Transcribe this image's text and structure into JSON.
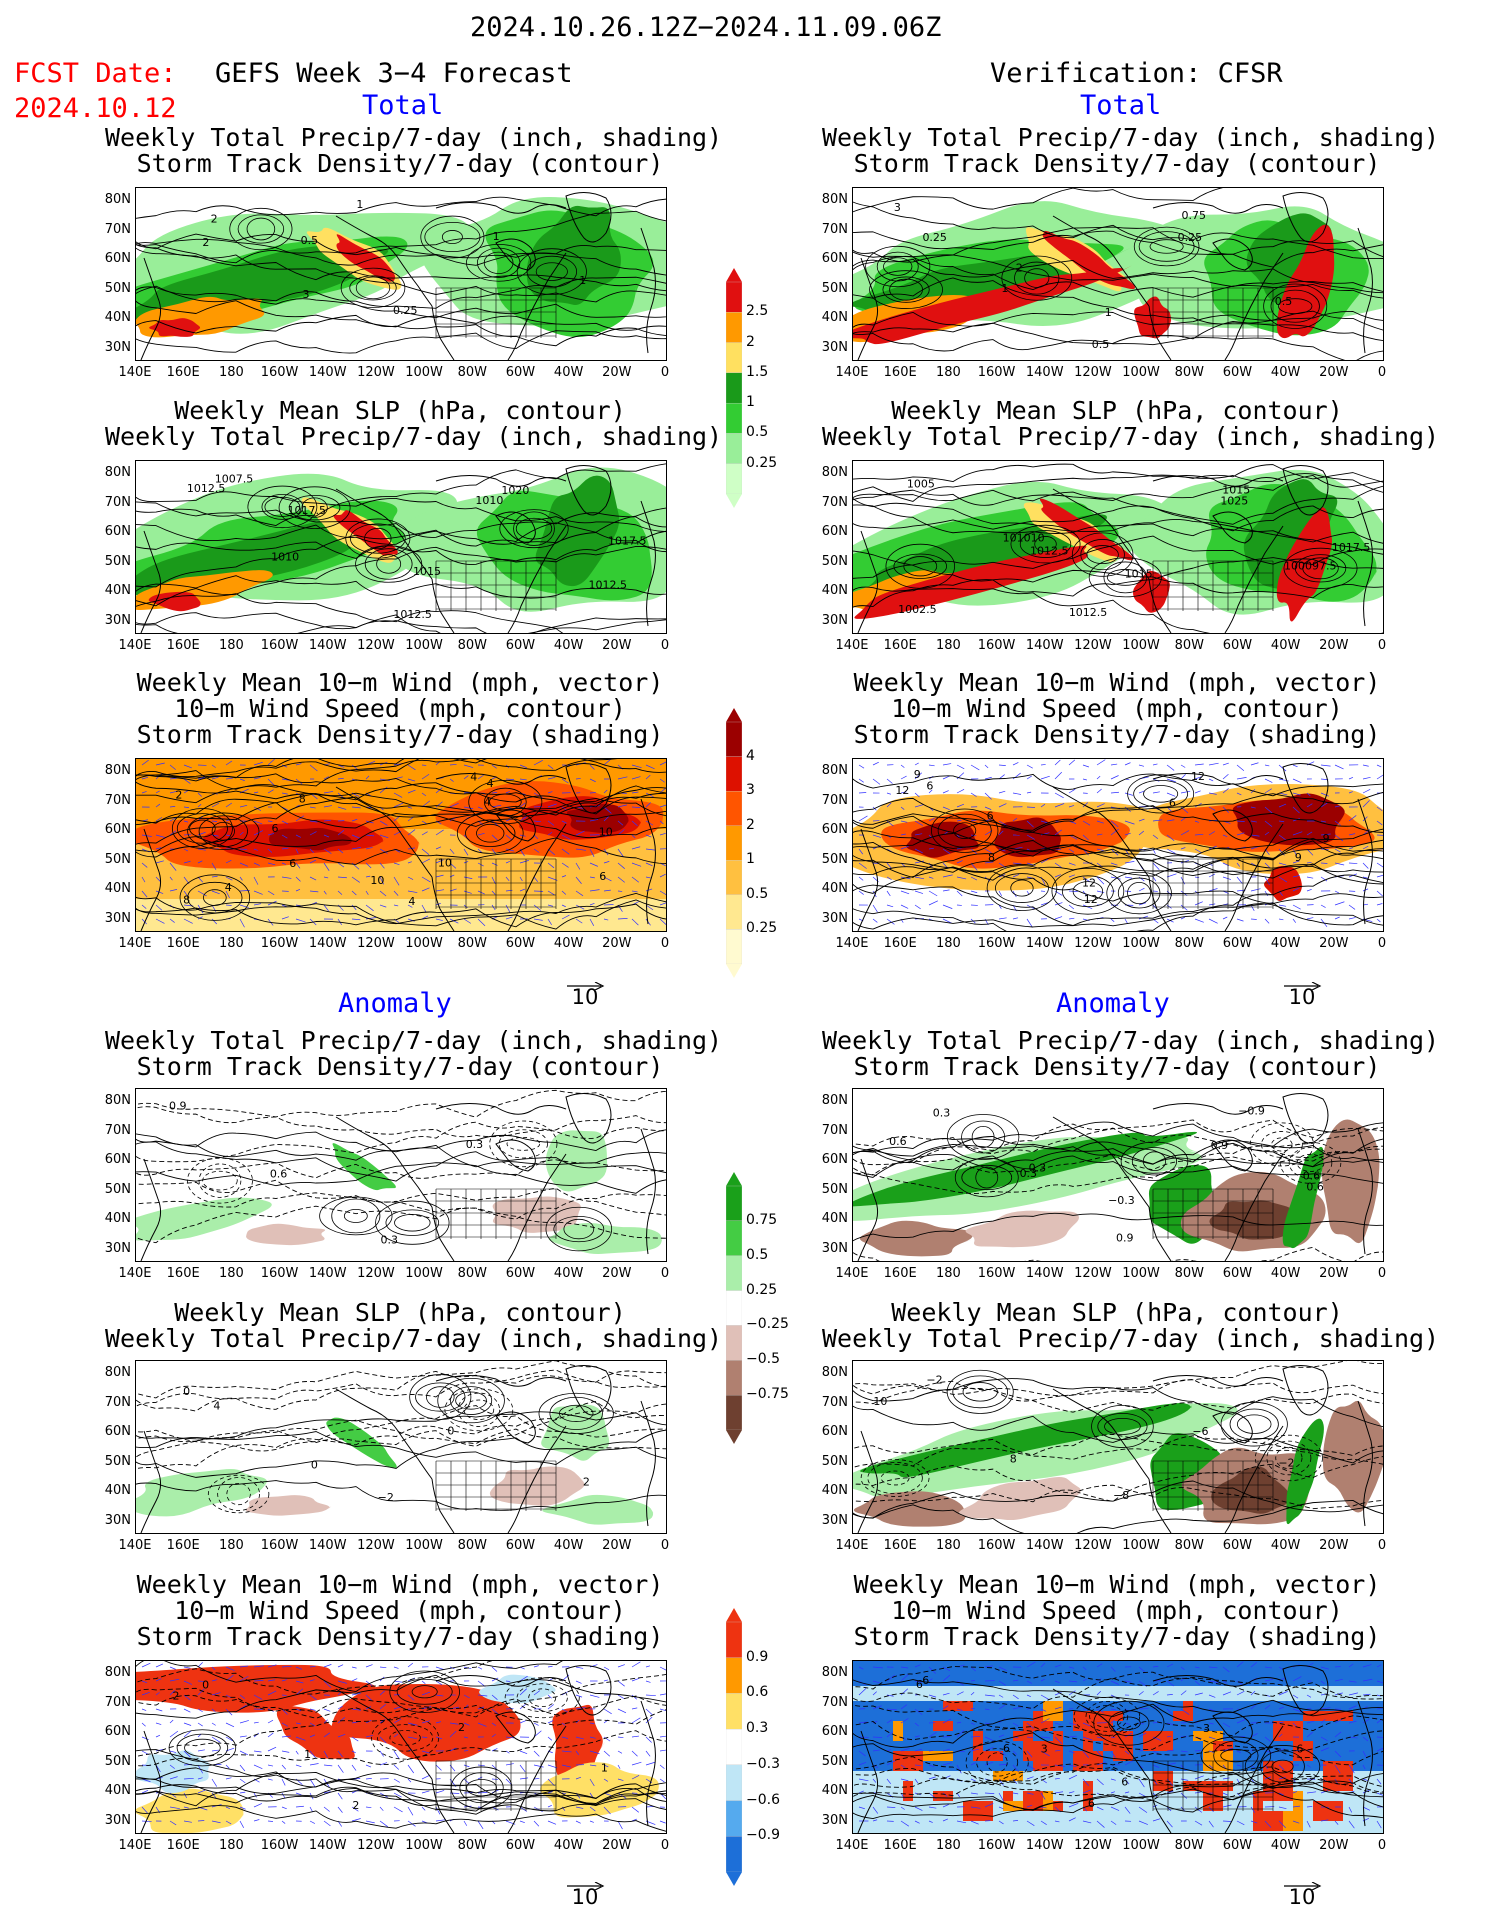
{
  "header": {
    "date_range": "2024.10.26.12Z−2024.11.09.06Z",
    "fcst_label": "FCST Date:",
    "fcst_date": "2024.10.12",
    "left_title": "GEFS Week 3−4 Forecast",
    "right_title": "Verification: CFSR"
  },
  "sections": {
    "total": "Total",
    "anomaly": "Anomaly"
  },
  "titles": {
    "precip_track": [
      "Weekly Total Precip/7-day (inch, shading)",
      "Storm Track Density/7-day (contour)"
    ],
    "slp_precip": [
      "Weekly Mean SLP (hPa, contour)",
      "Weekly Total Precip/7-day (inch, shading)"
    ],
    "wind_track": [
      "Weekly Mean 10−m Wind (mph, vector)",
      "10−m Wind Speed (mph, contour)",
      "Storm Track Density/7-day (shading)"
    ]
  },
  "axes": {
    "lat_labels": [
      "80N",
      "70N",
      "60N",
      "50N",
      "40N",
      "30N"
    ],
    "lon_labels": [
      "140E",
      "160E",
      "180",
      "160W",
      "140W",
      "120W",
      "100W",
      "80W",
      "60W",
      "40W",
      "20W",
      "0"
    ]
  },
  "vector_ref": "10",
  "colorbars": {
    "precip_total": {
      "labels": [
        "2.5",
        "2",
        "1.5",
        "1",
        "0.5",
        "0.25"
      ],
      "colors": [
        "#e01010",
        "#ff9900",
        "#ffe060",
        "#1a9a1a",
        "#33cc33",
        "#99ee99",
        "#cfffc6"
      ]
    },
    "track_total": {
      "labels": [
        "4",
        "3",
        "2",
        "1",
        "0.5",
        "0.25"
      ],
      "colors": [
        "#9b0000",
        "#dd1100",
        "#ff5500",
        "#ff9900",
        "#ffc040",
        "#ffe890",
        "#fffad0"
      ]
    },
    "precip_anom": {
      "labels": [
        "0.75",
        "0.5",
        "0.25",
        "−0.25",
        "−0.5",
        "−0.75"
      ],
      "colors": [
        "#1aa01a",
        "#44cc44",
        "#aaeeaa",
        "#ffffff",
        "#e0c0b8",
        "#b08070",
        "#6e4030"
      ]
    },
    "track_anom": {
      "labels": [
        "0.9",
        "0.6",
        "0.3",
        "−0.3",
        "−0.6",
        "−0.9"
      ],
      "colors": [
        "#ee3311",
        "#ff9900",
        "#ffe066",
        "#ffffff",
        "#bfe6f6",
        "#55aaee",
        "#1d6fd8"
      ]
    }
  },
  "contour_labels": {
    "fc_total_precip": [
      "2",
      "3",
      "1",
      "1",
      "1",
      "2",
      "0.5",
      "0.25"
    ],
    "vr_total_precip": [
      "0.25",
      "1",
      "0.5",
      "0.25",
      "0.5",
      "3",
      "2",
      "1",
      "0.75"
    ],
    "fc_total_slp": [
      "1012.5",
      "1010",
      "1012.5",
      "1010",
      "1012.5",
      "1007.5",
      "1017.5",
      "1015",
      "1020",
      "1017.5"
    ],
    "vr_total_slp": [
      "1005",
      "1012.5",
      "1012.5",
      "1025",
      "100097.5",
      "1002.5",
      "101010",
      "1015",
      "1015",
      "1017.5"
    ],
    "fc_total_wind": [
      "2",
      "6",
      "4",
      "4",
      "6",
      "8",
      "6",
      "10",
      "4",
      "10",
      "4",
      "8",
      "10",
      "4"
    ],
    "vr_total_wind": [
      "12",
      "8",
      "12",
      "6",
      "9",
      "6",
      "6",
      "12",
      "12",
      "9",
      "9"
    ],
    "fc_anom_precip": [
      "0.9",
      "0.6",
      "0.3",
      "0.3"
    ],
    "vr_anom_precip": [
      "0.6",
      "0.3",
      "0.9",
      "0.9",
      "0.6",
      "0.3",
      "0.3",
      "−0.3",
      "−0.9",
      "0.6"
    ],
    "fc_anom_slp": [
      "4",
      "0",
      "−2",
      "0",
      "2",
      "0"
    ],
    "vr_anom_slp": [
      "10",
      "8",
      "−8",
      "−6",
      "−2",
      "−2"
    ],
    "fc_anom_wind": [
      "0",
      "1",
      "2",
      "2",
      "1",
      "2"
    ],
    "vr_anom_wind": [
      "6",
      "6",
      "6",
      "3",
      "6",
      "6",
      "3",
      "6"
    ]
  }
}
